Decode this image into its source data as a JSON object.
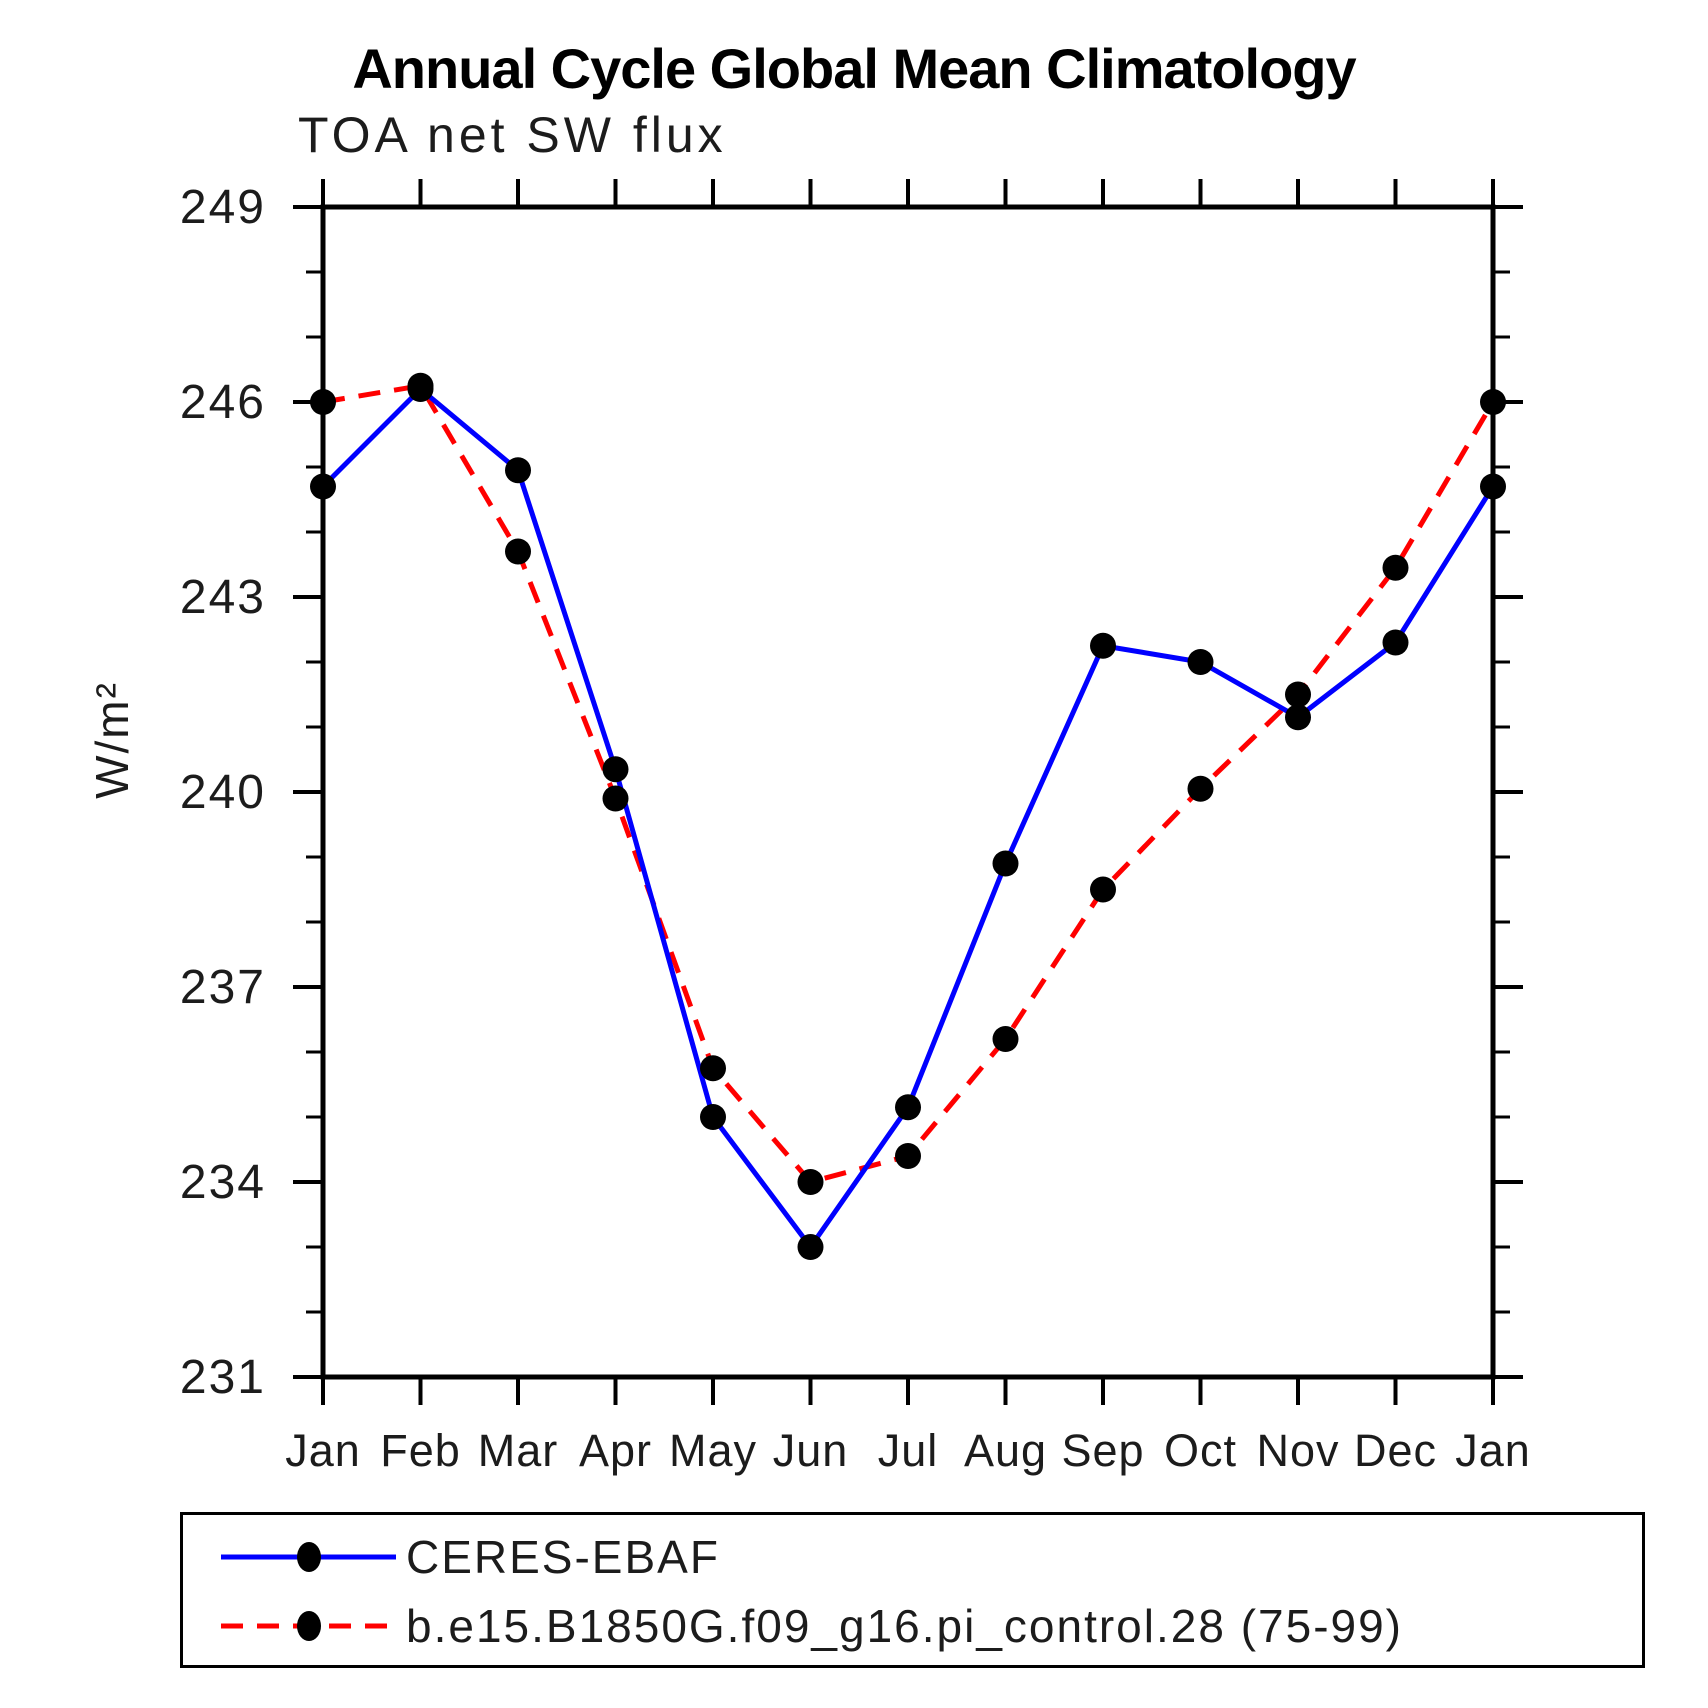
{
  "title": "Annual Cycle Global Mean Climatology",
  "subtitle": "TOA net SW flux",
  "chart_data": {
    "type": "line",
    "categories": [
      "Jan",
      "Feb",
      "Mar",
      "Apr",
      "May",
      "Jun",
      "Jul",
      "Aug",
      "Sep",
      "Oct",
      "Nov",
      "Dec",
      "Jan"
    ],
    "series": [
      {
        "name": "CERES-EBAF",
        "color": "#0000ff",
        "style": "solid",
        "marker": "circle",
        "marker_color": "#000000",
        "values": [
          244.7,
          246.2,
          244.95,
          240.35,
          235.0,
          233.0,
          235.15,
          238.9,
          242.25,
          242.0,
          241.15,
          242.3,
          244.7
        ]
      },
      {
        "name": "b.e15.B1850G.f09_g16.pi_control.28 (75-99)",
        "color": "#ff0000",
        "style": "dashed",
        "marker": "circle",
        "marker_color": "#000000",
        "values": [
          246.0,
          246.25,
          243.7,
          239.9,
          235.75,
          234.0,
          234.4,
          236.2,
          238.5,
          240.05,
          241.5,
          243.45,
          246.0
        ]
      }
    ],
    "ylabel": "W/m²",
    "xlabel": "",
    "ylim": [
      231,
      249
    ],
    "yticks": [
      231,
      234,
      237,
      240,
      243,
      246,
      249
    ],
    "minor_tick_interval": 1,
    "grid": false,
    "legend_position": "bottom"
  }
}
